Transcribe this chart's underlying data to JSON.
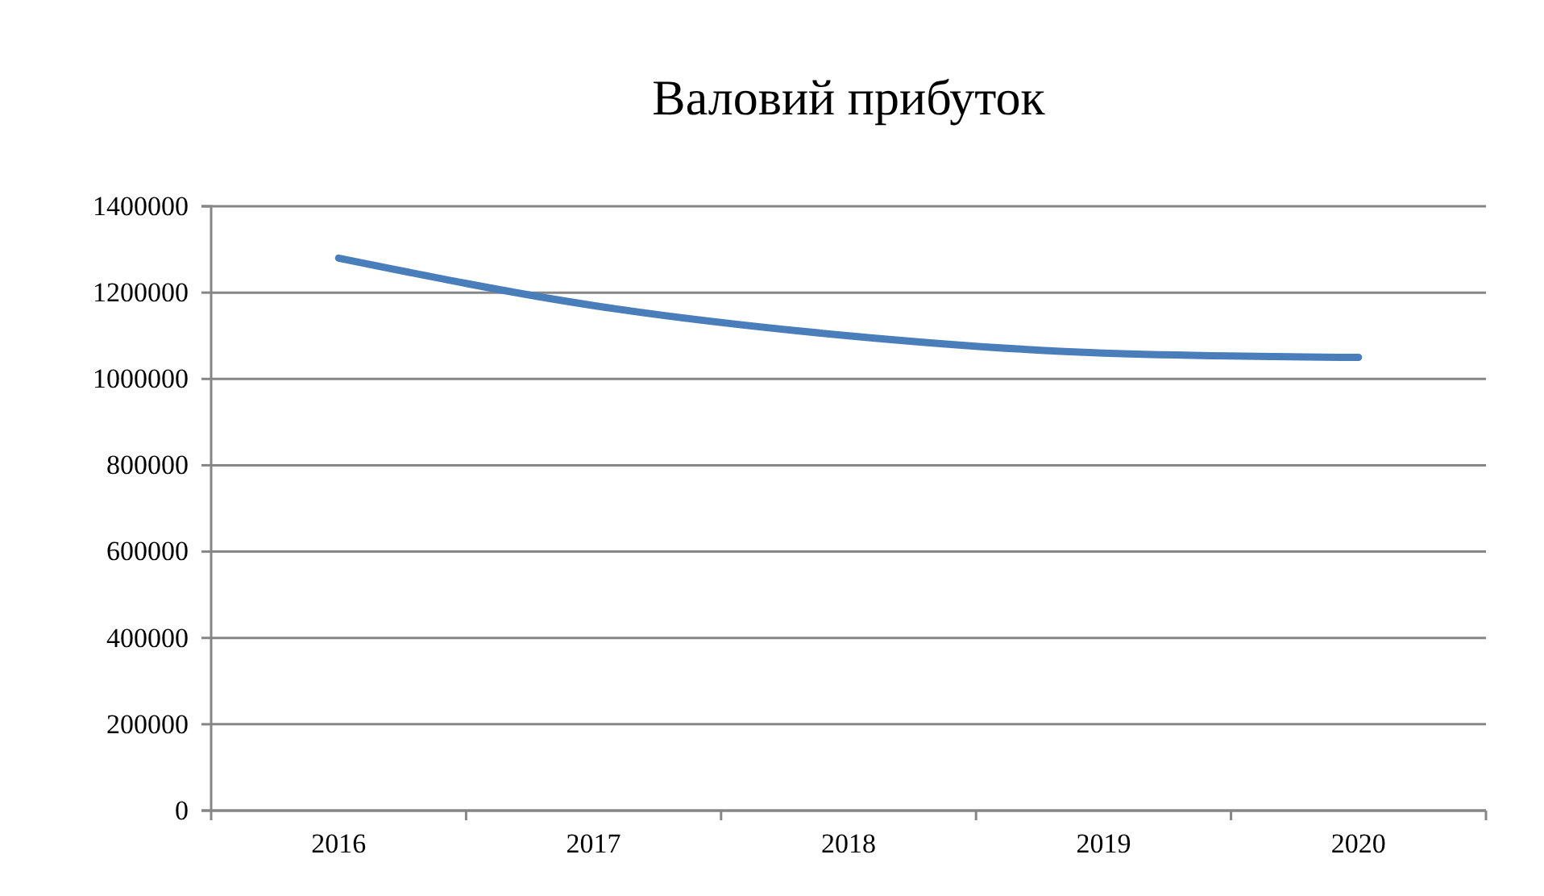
{
  "chart_data": {
    "type": "line",
    "title": "Валовий прибуток",
    "categories": [
      "2016",
      "2017",
      "2018",
      "2019",
      "2020"
    ],
    "series": [
      {
        "color": "#4a7ebb",
        "values": [
          1280000,
          1170000,
          1100000,
          1060000,
          1050000
        ]
      }
    ],
    "ylim": [
      0,
      1400000
    ],
    "yticks": [
      0,
      200000,
      400000,
      600000,
      800000,
      1000000,
      1200000,
      1400000
    ],
    "grid": "y"
  }
}
